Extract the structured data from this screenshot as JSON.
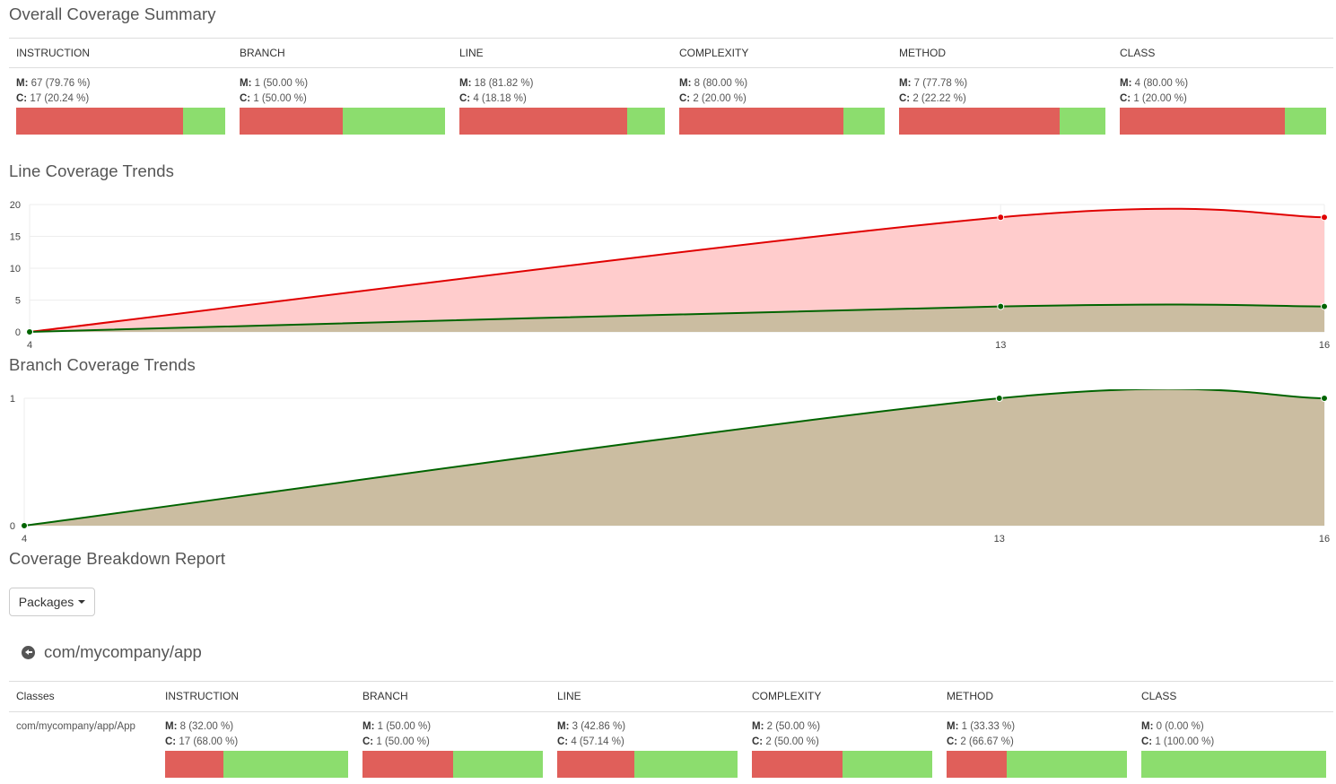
{
  "summary": {
    "title": "Overall Coverage Summary",
    "columns": [
      {
        "label": "INSTRUCTION",
        "missed": "67 (79.76 %)",
        "covered": "17 (20.24 %)",
        "missed_pct": 79.76
      },
      {
        "label": "BRANCH",
        "missed": "1 (50.00 %)",
        "covered": "1 (50.00 %)",
        "missed_pct": 50.0
      },
      {
        "label": "LINE",
        "missed": "18 (81.82 %)",
        "covered": "4 (18.18 %)",
        "missed_pct": 81.82
      },
      {
        "label": "COMPLEXITY",
        "missed": "8 (80.00 %)",
        "covered": "2 (20.00 %)",
        "missed_pct": 80.0
      },
      {
        "label": "METHOD",
        "missed": "7 (77.78 %)",
        "covered": "2 (22.22 %)",
        "missed_pct": 77.78
      },
      {
        "label": "CLASS",
        "missed": "4 (80.00 %)",
        "covered": "1 (20.00 %)",
        "missed_pct": 80.0
      }
    ],
    "m_label": "M:",
    "c_label": "C:"
  },
  "line_trends": {
    "title": "Line Coverage Trends"
  },
  "branch_trends": {
    "title": "Branch Coverage Trends"
  },
  "chart_data": [
    {
      "type": "area",
      "title": "Line Coverage Trends",
      "x": [
        4,
        13,
        16
      ],
      "ylim": [
        0,
        20
      ],
      "yticks": [
        0,
        5,
        10,
        15,
        20
      ],
      "series": [
        {
          "values": [
            0,
            18,
            18
          ],
          "color": "#e00000",
          "fill": "#ffcccc"
        },
        {
          "values": [
            0,
            4,
            4
          ],
          "color": "#006400",
          "fill": "#cbbda1"
        }
      ]
    },
    {
      "type": "area",
      "title": "Branch Coverage Trends",
      "x": [
        4,
        13,
        16
      ],
      "ylim": [
        0,
        1
      ],
      "yticks": [
        0,
        1
      ],
      "series": [
        {
          "values": [
            0,
            1,
            1
          ],
          "color": "#006400",
          "fill": "#cbbda1"
        }
      ]
    }
  ],
  "breakdown": {
    "title": "Coverage Breakdown Report",
    "dropdown": "Packages",
    "package": "com/mycompany/app",
    "headers": [
      "Classes",
      "INSTRUCTION",
      "BRANCH",
      "LINE",
      "COMPLEXITY",
      "METHOD",
      "CLASS"
    ],
    "rows": [
      {
        "name": "com/mycompany/app/App",
        "cells": [
          {
            "missed": "8 (32.00 %)",
            "covered": "17 (68.00 %)",
            "missed_pct": 32.0
          },
          {
            "missed": "1 (50.00 %)",
            "covered": "1 (50.00 %)",
            "missed_pct": 50.0
          },
          {
            "missed": "3 (42.86 %)",
            "covered": "4 (57.14 %)",
            "missed_pct": 42.86
          },
          {
            "missed": "2 (50.00 %)",
            "covered": "2 (50.00 %)",
            "missed_pct": 50.0
          },
          {
            "missed": "1 (33.33 %)",
            "covered": "2 (66.67 %)",
            "missed_pct": 33.33
          },
          {
            "missed": "0 (0.00 %)",
            "covered": "1 (100.00 %)",
            "missed_pct": 0.0
          }
        ]
      }
    ]
  },
  "colors": {
    "missed": "#e05f5a",
    "covered": "#8cdd6e"
  }
}
